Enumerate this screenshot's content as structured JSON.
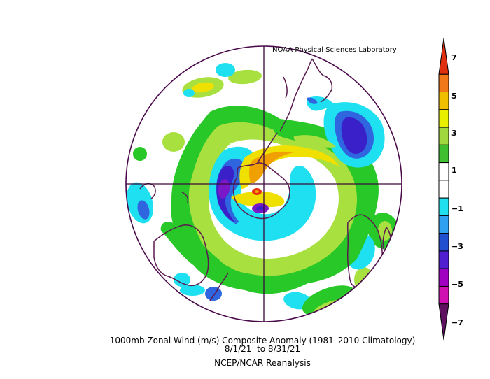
{
  "credit": "NOAA Physical Sciences Laboratory",
  "caption": {
    "line1": "1000mb Zonal Wind (m/s) Composite Anomaly (1981–2010 Climatology)",
    "line2": "8/1/21  to 8/31/21",
    "line3": "NCEP/NCAR Reanalysis"
  },
  "colorbar": {
    "labels": [
      "7",
      "5",
      "3",
      "1",
      "−1",
      "−3",
      "−5",
      "−7"
    ],
    "colors": [
      "#e03010",
      "#f07818",
      "#f0c000",
      "#e8f000",
      "#a0d840",
      "#40c030",
      "#ffffff",
      "#ffffff",
      "#20e0f0",
      "#30a0f0",
      "#2050d0",
      "#5020d0",
      "#a000c0",
      "#d010b0",
      "#601060"
    ]
  },
  "map": {
    "projection": "south-polar-stereographic",
    "palette": {
      "cyan": "#1ee0f0",
      "blue": "#2f66e0",
      "indigo": "#3a20c8",
      "violet": "#7818c8",
      "green": "#28c828",
      "lime": "#a8e040",
      "yellow": "#f0e000",
      "orange": "#f0a000",
      "red": "#e83010",
      "coast": "#5a1a50",
      "rim": "#4a0a4a"
    }
  }
}
